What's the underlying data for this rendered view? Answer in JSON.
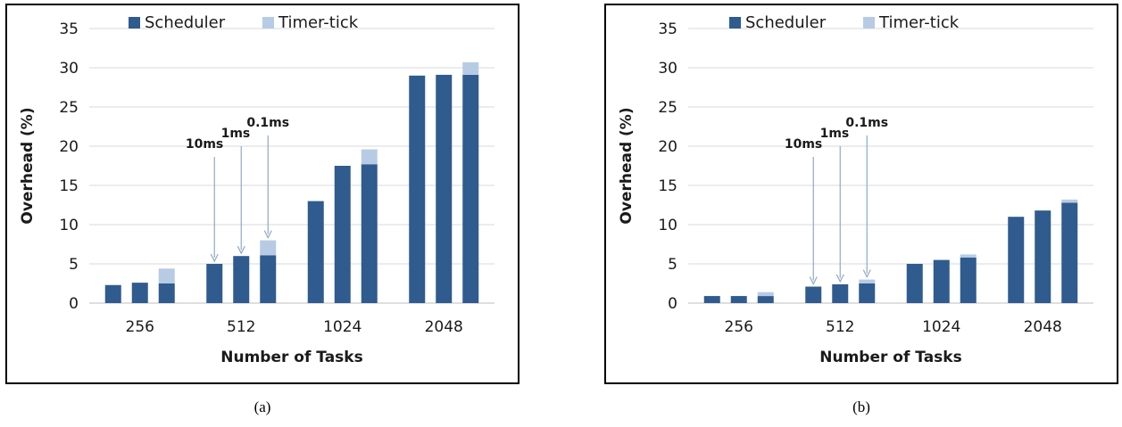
{
  "chart_data": [
    {
      "type": "bar",
      "stacked": true,
      "caption": "(a)",
      "categories": [
        "256",
        "512",
        "1024",
        "2048"
      ],
      "bars_per_category": 3,
      "series": [
        {
          "name": "Scheduler",
          "color": "#2f5b8f",
          "values": [
            [
              2.3,
              2.6,
              2.5
            ],
            [
              5.0,
              6.0,
              6.1
            ],
            [
              13.0,
              17.5,
              17.7
            ],
            [
              29.0,
              29.1,
              29.1
            ]
          ]
        },
        {
          "name": "Timer-tick",
          "color": "#b7cbe4",
          "values": [
            [
              0.0,
              0.0,
              1.9
            ],
            [
              0.0,
              0.0,
              1.9
            ],
            [
              0.0,
              0.0,
              1.9
            ],
            [
              0.0,
              0.0,
              1.6
            ]
          ]
        }
      ],
      "xlabel": "Number of Tasks",
      "ylabel": "Overhead (%)",
      "ylim": [
        0,
        35
      ],
      "yticks": [
        0,
        5,
        10,
        15,
        20,
        25,
        30,
        35
      ],
      "grid": true,
      "legend": "top",
      "annotations": [
        {
          "text": "10ms",
          "category": 1,
          "bar": 0
        },
        {
          "text": "1ms",
          "category": 1,
          "bar": 1
        },
        {
          "text": "0.1ms",
          "category": 1,
          "bar": 2
        }
      ]
    },
    {
      "type": "bar",
      "stacked": true,
      "caption": "(b)",
      "categories": [
        "256",
        "512",
        "1024",
        "2048"
      ],
      "bars_per_category": 3,
      "series": [
        {
          "name": "Scheduler",
          "color": "#2f5b8f",
          "values": [
            [
              0.9,
              0.9,
              0.9
            ],
            [
              2.1,
              2.4,
              2.5
            ],
            [
              5.0,
              5.5,
              5.8
            ],
            [
              11.0,
              11.8,
              12.8
            ]
          ]
        },
        {
          "name": "Timer-tick",
          "color": "#b7cbe4",
          "values": [
            [
              0.0,
              0.0,
              0.5
            ],
            [
              0.0,
              0.0,
              0.5
            ],
            [
              0.0,
              0.0,
              0.4
            ],
            [
              0.0,
              0.0,
              0.4
            ]
          ]
        }
      ],
      "xlabel": "Number of Tasks",
      "ylabel": "Overhead (%)",
      "ylim": [
        0,
        35
      ],
      "yticks": [
        0,
        5,
        10,
        15,
        20,
        25,
        30,
        35
      ],
      "grid": true,
      "legend": "top",
      "annotations": [
        {
          "text": "10ms",
          "category": 1,
          "bar": 0
        },
        {
          "text": "1ms",
          "category": 1,
          "bar": 1
        },
        {
          "text": "0.1ms",
          "category": 1,
          "bar": 2
        }
      ]
    }
  ]
}
